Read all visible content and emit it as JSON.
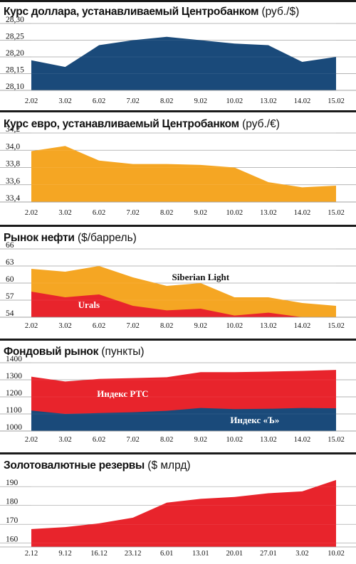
{
  "colors": {
    "navy": "#1a4a7a",
    "orange": "#f5a623",
    "red": "#e8242c",
    "grid": "#9a9a9a",
    "text": "#111111"
  },
  "panels": [
    {
      "title": "Курс доллара, устанавливаемый Центробанком",
      "unit": "(руб./$)"
    },
    {
      "title": "Курс евро, устанавливаемый Центробанком",
      "unit": "(руб./€)"
    },
    {
      "title": "Рынок нефти",
      "unit": "($/баррель)"
    },
    {
      "title": "Фондовый рынок",
      "unit": "(пункты)"
    },
    {
      "title": "Золотовалютные резервы",
      "unit": "($ млрд)"
    }
  ],
  "chart_data": [
    {
      "type": "area",
      "categories": [
        "2.02",
        "3.02",
        "6.02",
        "7.02",
        "8.02",
        "9.02",
        "10.02",
        "13.02",
        "14.02",
        "15.02"
      ],
      "yticks": [
        "28,30",
        "28,25",
        "28,20",
        "28,15",
        "28,10"
      ],
      "ylim": [
        28.1,
        28.3
      ],
      "grid": true,
      "series": [
        {
          "color": "#1a4a7a",
          "values": [
            28.19,
            28.17,
            28.235,
            28.25,
            28.26,
            28.25,
            28.24,
            28.235,
            28.185,
            28.2
          ]
        }
      ]
    },
    {
      "type": "area",
      "categories": [
        "2.02",
        "3.02",
        "6.02",
        "7.02",
        "8.02",
        "9.02",
        "10.02",
        "13.02",
        "14.02",
        "15.02"
      ],
      "yticks": [
        "34,2",
        "34,0",
        "33,8",
        "33,6",
        "33,4"
      ],
      "ylim": [
        33.4,
        34.2
      ],
      "grid": true,
      "series": [
        {
          "color": "#f5a623",
          "values": [
            33.99,
            34.05,
            33.88,
            33.84,
            33.84,
            33.83,
            33.8,
            33.63,
            33.57,
            33.59
          ]
        }
      ]
    },
    {
      "type": "area",
      "categories": [
        "2.02",
        "3.02",
        "6.02",
        "7.02",
        "8.02",
        "9.02",
        "10.02",
        "13.02",
        "14.02",
        "15.02"
      ],
      "yticks": [
        "66",
        "63",
        "60",
        "57",
        "54"
      ],
      "ylim": [
        54,
        66
      ],
      "grid": true,
      "series": [
        {
          "name": "Siberian Light",
          "color": "#f5a623",
          "values": [
            62.5,
            62.0,
            63.0,
            61.0,
            59.5,
            60.0,
            57.5,
            57.5,
            56.5,
            56.0
          ]
        },
        {
          "name": "Urals",
          "color": "#e8242c",
          "values": [
            58.5,
            57.5,
            58.0,
            56.0,
            55.2,
            55.5,
            54.3,
            54.8,
            54.0,
            54.0
          ]
        }
      ]
    },
    {
      "type": "area",
      "categories": [
        "2.02",
        "3.02",
        "6.02",
        "7.02",
        "8.02",
        "9.02",
        "10.02",
        "13.02",
        "14.02",
        "15.02"
      ],
      "yticks": [
        "1400",
        "1300",
        "1200",
        "1100",
        "1000"
      ],
      "ylim": [
        1000,
        1400
      ],
      "grid": true,
      "series": [
        {
          "name": "Индекс РТС",
          "color": "#e8242c",
          "values": [
            1318,
            1290,
            1305,
            1310,
            1315,
            1345,
            1345,
            1348,
            1352,
            1358
          ]
        },
        {
          "name": "Индекс «Ъ»",
          "color": "#1a4a7a",
          "values": [
            1120,
            1100,
            1105,
            1110,
            1118,
            1135,
            1128,
            1130,
            1135,
            1133
          ]
        }
      ]
    },
    {
      "type": "area",
      "categories": [
        "2.12",
        "9.12",
        "16.12",
        "23.12",
        "6.01",
        "13.01",
        "20.01",
        "27.01",
        "3.02",
        "10.02"
      ],
      "yticks": [
        "190",
        "180",
        "170",
        "160"
      ],
      "ylim": [
        158,
        198
      ],
      "grid": true,
      "series": [
        {
          "color": "#e8242c",
          "values": [
            167.5,
            168.5,
            170.5,
            173.5,
            181.5,
            183.5,
            184.5,
            186.5,
            187.5,
            193.5
          ]
        }
      ]
    }
  ]
}
